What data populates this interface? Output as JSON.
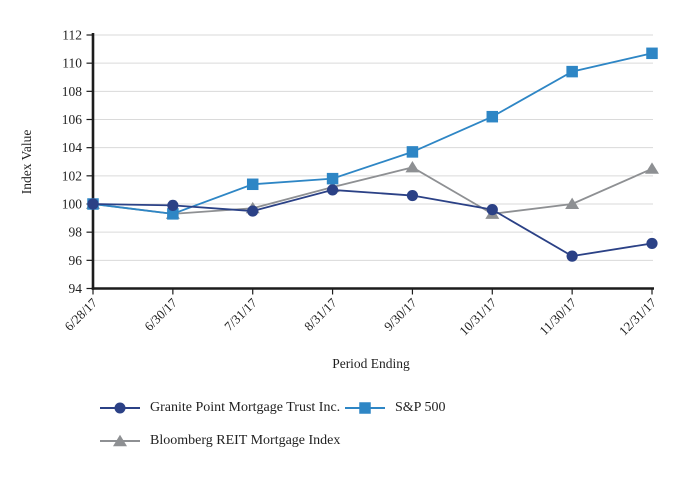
{
  "chart_data": {
    "type": "line",
    "title": "",
    "xlabel": "Period Ending",
    "ylabel": "Index Value",
    "ylim": [
      94,
      112
    ],
    "yticks": [
      94,
      96,
      98,
      100,
      102,
      104,
      106,
      108,
      110,
      112
    ],
    "grid": true,
    "legend_position": "bottom",
    "categories": [
      "6/28/17",
      "6/30/17",
      "7/31/17",
      "8/31/17",
      "9/30/17",
      "10/31/17",
      "11/30/17",
      "12/31/17"
    ],
    "series": [
      {
        "name": "Granite Point Mortgage Trust Inc.",
        "marker": "circle",
        "color": "#2b4186",
        "values": [
          100.0,
          99.9,
          99.5,
          101.0,
          100.6,
          99.6,
          96.3,
          97.2
        ]
      },
      {
        "name": "S&P 500",
        "marker": "square",
        "color": "#2e86c5",
        "values": [
          100.0,
          99.3,
          101.4,
          101.8,
          103.7,
          106.2,
          109.4,
          110.7
        ]
      },
      {
        "name": "Bloomberg REIT Mortgage Index",
        "marker": "triangle",
        "color": "#8e9093",
        "values": [
          100.0,
          99.3,
          99.7,
          101.2,
          102.6,
          99.3,
          100.0,
          102.5
        ]
      }
    ],
    "axis_color": "#1c1c1c",
    "gridline_color": "#dadada",
    "text_color": "#1f1f1f"
  }
}
